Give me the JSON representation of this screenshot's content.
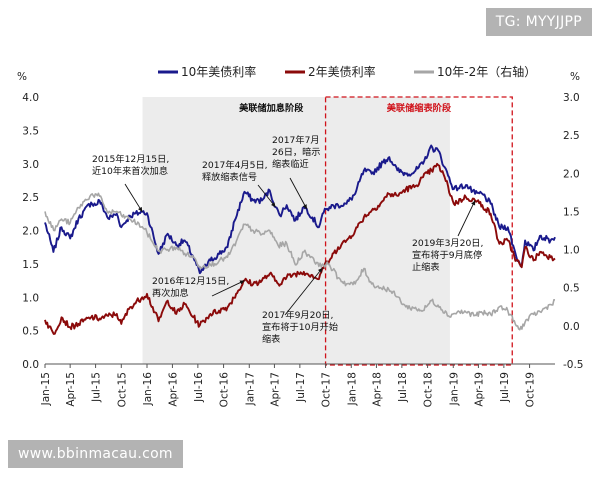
{
  "watermarks": {
    "top": "TG: MYYJJPP",
    "bottom": "www.bbinmacau.com"
  },
  "chart_data": {
    "type": "line",
    "left_unit": "%",
    "right_unit": "%",
    "ylim_left": [
      0.0,
      4.0
    ],
    "yticks_left": [
      "0.0",
      "0.5",
      "1.0",
      "1.5",
      "2.0",
      "2.5",
      "3.0",
      "3.5",
      "4.0"
    ],
    "ylim_right": [
      -0.5,
      3.0
    ],
    "yticks_right": [
      "-0.5",
      "0.0",
      "0.5",
      "1.0",
      "1.5",
      "2.0",
      "2.5",
      "3.0"
    ],
    "xlim": [
      "2015-01-01",
      "2019-12-31"
    ],
    "x_ticks": [
      {
        "label": "Jan-15",
        "date": "2015-01-01"
      },
      {
        "label": "Apr-15",
        "date": "2015-04-01"
      },
      {
        "label": "Jul-15",
        "date": "2015-07-01"
      },
      {
        "label": "Oct-15",
        "date": "2015-10-01"
      },
      {
        "label": "Jan-16",
        "date": "2016-01-01"
      },
      {
        "label": "Apr-16",
        "date": "2016-04-01"
      },
      {
        "label": "Jul-16",
        "date": "2016-07-01"
      },
      {
        "label": "Oct-16",
        "date": "2016-10-01"
      },
      {
        "label": "Jan-17",
        "date": "2017-01-01"
      },
      {
        "label": "Apr-17",
        "date": "2017-04-01"
      },
      {
        "label": "Jul-17",
        "date": "2017-07-01"
      },
      {
        "label": "Oct-17",
        "date": "2017-10-01"
      },
      {
        "label": "Jan-18",
        "date": "2018-01-01"
      },
      {
        "label": "Apr-18",
        "date": "2018-04-01"
      },
      {
        "label": "Jul-18",
        "date": "2018-07-01"
      },
      {
        "label": "Oct-18",
        "date": "2018-10-01"
      },
      {
        "label": "Jan-19",
        "date": "2019-01-01"
      },
      {
        "label": "Apr-19",
        "date": "2019-04-01"
      },
      {
        "label": "Jul-19",
        "date": "2019-07-01"
      },
      {
        "label": "Oct-19",
        "date": "2019-10-01"
      }
    ],
    "legend_position": "top",
    "series": [
      {
        "name": "10年美债利率",
        "axis": "left",
        "color": "#1a1a8c",
        "points": [
          [
            "2015-01-01",
            2.12
          ],
          [
            "2015-01-31",
            1.68
          ],
          [
            "2015-03-01",
            2.05
          ],
          [
            "2015-04-01",
            1.88
          ],
          [
            "2015-05-01",
            2.18
          ],
          [
            "2015-06-15",
            2.42
          ],
          [
            "2015-07-01",
            2.38
          ],
          [
            "2015-07-15",
            2.45
          ],
          [
            "2015-08-15",
            2.18
          ],
          [
            "2015-09-15",
            2.25
          ],
          [
            "2015-10-01",
            2.05
          ],
          [
            "2015-11-01",
            2.22
          ],
          [
            "2015-12-15",
            2.28
          ],
          [
            "2016-01-01",
            2.26
          ],
          [
            "2016-02-11",
            1.65
          ],
          [
            "2016-03-15",
            1.95
          ],
          [
            "2016-04-15",
            1.78
          ],
          [
            "2016-05-15",
            1.85
          ],
          [
            "2016-06-15",
            1.6
          ],
          [
            "2016-07-08",
            1.36
          ],
          [
            "2016-08-15",
            1.55
          ],
          [
            "2016-09-15",
            1.65
          ],
          [
            "2016-10-15",
            1.75
          ],
          [
            "2016-11-10",
            2.15
          ],
          [
            "2016-12-15",
            2.58
          ],
          [
            "2017-01-15",
            2.45
          ],
          [
            "2017-02-15",
            2.45
          ],
          [
            "2017-03-15",
            2.6
          ],
          [
            "2017-04-05",
            2.35
          ],
          [
            "2017-04-20",
            2.23
          ],
          [
            "2017-05-15",
            2.38
          ],
          [
            "2017-06-15",
            2.15
          ],
          [
            "2017-07-15",
            2.35
          ],
          [
            "2017-07-26",
            2.32
          ],
          [
            "2017-09-07",
            2.05
          ],
          [
            "2017-09-20",
            2.25
          ],
          [
            "2017-10-15",
            2.35
          ],
          [
            "2017-11-15",
            2.38
          ],
          [
            "2017-12-15",
            2.4
          ],
          [
            "2018-01-15",
            2.55
          ],
          [
            "2018-02-15",
            2.9
          ],
          [
            "2018-03-15",
            2.85
          ],
          [
            "2018-04-25",
            3.02
          ],
          [
            "2018-05-17",
            3.1
          ],
          [
            "2018-06-15",
            2.9
          ],
          [
            "2018-07-15",
            2.85
          ],
          [
            "2018-08-15",
            2.88
          ],
          [
            "2018-09-15",
            3.0
          ],
          [
            "2018-10-10",
            3.24
          ],
          [
            "2018-11-08",
            3.2
          ],
          [
            "2018-12-01",
            2.95
          ],
          [
            "2019-01-03",
            2.62
          ],
          [
            "2019-02-15",
            2.68
          ],
          [
            "2019-03-20",
            2.55
          ],
          [
            "2019-04-15",
            2.55
          ],
          [
            "2019-05-15",
            2.4
          ],
          [
            "2019-06-15",
            2.05
          ],
          [
            "2019-07-15",
            2.05
          ],
          [
            "2019-08-15",
            1.6
          ],
          [
            "2019-09-03",
            1.47
          ],
          [
            "2019-09-15",
            1.85
          ],
          [
            "2019-10-15",
            1.7
          ],
          [
            "2019-11-07",
            1.92
          ],
          [
            "2019-12-15",
            1.85
          ],
          [
            "2019-12-31",
            1.9
          ]
        ]
      },
      {
        "name": "2年美债利率",
        "axis": "left",
        "color": "#8b0a0a",
        "points": [
          [
            "2015-01-01",
            0.66
          ],
          [
            "2015-02-01",
            0.45
          ],
          [
            "2015-03-01",
            0.7
          ],
          [
            "2015-04-01",
            0.55
          ],
          [
            "2015-05-01",
            0.6
          ],
          [
            "2015-06-15",
            0.7
          ],
          [
            "2015-07-15",
            0.68
          ],
          [
            "2015-08-15",
            0.72
          ],
          [
            "2015-09-15",
            0.75
          ],
          [
            "2015-10-01",
            0.6
          ],
          [
            "2015-11-01",
            0.85
          ],
          [
            "2015-12-15",
            1.0
          ],
          [
            "2016-01-01",
            1.05
          ],
          [
            "2016-02-11",
            0.64
          ],
          [
            "2016-03-15",
            0.95
          ],
          [
            "2016-04-15",
            0.75
          ],
          [
            "2016-05-15",
            0.9
          ],
          [
            "2016-06-15",
            0.7
          ],
          [
            "2016-07-08",
            0.58
          ],
          [
            "2016-08-15",
            0.75
          ],
          [
            "2016-09-15",
            0.8
          ],
          [
            "2016-10-15",
            0.85
          ],
          [
            "2016-11-15",
            1.05
          ],
          [
            "2016-12-15",
            1.25
          ],
          [
            "2017-01-15",
            1.2
          ],
          [
            "2017-02-15",
            1.25
          ],
          [
            "2017-03-15",
            1.35
          ],
          [
            "2017-04-15",
            1.2
          ],
          [
            "2017-05-15",
            1.3
          ],
          [
            "2017-06-15",
            1.35
          ],
          [
            "2017-07-15",
            1.38
          ],
          [
            "2017-08-15",
            1.33
          ],
          [
            "2017-09-07",
            1.27
          ],
          [
            "2017-09-20",
            1.44
          ],
          [
            "2017-10-15",
            1.55
          ],
          [
            "2017-11-15",
            1.75
          ],
          [
            "2017-12-15",
            1.85
          ],
          [
            "2018-01-15",
            2.0
          ],
          [
            "2018-02-15",
            2.2
          ],
          [
            "2018-03-15",
            2.3
          ],
          [
            "2018-04-15",
            2.4
          ],
          [
            "2018-05-15",
            2.55
          ],
          [
            "2018-06-15",
            2.52
          ],
          [
            "2018-07-15",
            2.62
          ],
          [
            "2018-08-15",
            2.65
          ],
          [
            "2018-09-15",
            2.8
          ],
          [
            "2018-10-15",
            2.9
          ],
          [
            "2018-11-08",
            2.98
          ],
          [
            "2018-12-01",
            2.8
          ],
          [
            "2019-01-03",
            2.4
          ],
          [
            "2019-02-15",
            2.5
          ],
          [
            "2019-03-20",
            2.45
          ],
          [
            "2019-04-15",
            2.38
          ],
          [
            "2019-05-15",
            2.25
          ],
          [
            "2019-06-15",
            1.8
          ],
          [
            "2019-07-15",
            1.85
          ],
          [
            "2019-08-15",
            1.55
          ],
          [
            "2019-09-03",
            1.45
          ],
          [
            "2019-09-15",
            1.75
          ],
          [
            "2019-10-15",
            1.55
          ],
          [
            "2019-11-07",
            1.68
          ],
          [
            "2019-12-15",
            1.6
          ],
          [
            "2019-12-31",
            1.58
          ]
        ]
      },
      {
        "name": "10年-2年（右轴）",
        "axis": "right",
        "color": "#a6a6a6",
        "points": [
          [
            "2015-01-01",
            1.5
          ],
          [
            "2015-02-01",
            1.25
          ],
          [
            "2015-03-01",
            1.4
          ],
          [
            "2015-04-01",
            1.35
          ],
          [
            "2015-05-01",
            1.55
          ],
          [
            "2015-06-15",
            1.72
          ],
          [
            "2015-07-15",
            1.7
          ],
          [
            "2015-08-15",
            1.48
          ],
          [
            "2015-09-15",
            1.5
          ],
          [
            "2015-10-01",
            1.45
          ],
          [
            "2015-11-01",
            1.4
          ],
          [
            "2015-12-15",
            1.3
          ],
          [
            "2016-01-01",
            1.22
          ],
          [
            "2016-02-11",
            0.98
          ],
          [
            "2016-03-15",
            1.0
          ],
          [
            "2016-04-15",
            1.03
          ],
          [
            "2016-05-15",
            0.95
          ],
          [
            "2016-06-15",
            0.9
          ],
          [
            "2016-07-08",
            0.78
          ],
          [
            "2016-08-15",
            0.8
          ],
          [
            "2016-09-15",
            0.85
          ],
          [
            "2016-10-15",
            0.9
          ],
          [
            "2016-11-15",
            1.1
          ],
          [
            "2016-12-15",
            1.33
          ],
          [
            "2017-01-15",
            1.25
          ],
          [
            "2017-02-15",
            1.2
          ],
          [
            "2017-03-15",
            1.25
          ],
          [
            "2017-04-15",
            1.05
          ],
          [
            "2017-05-15",
            1.08
          ],
          [
            "2017-06-15",
            0.8
          ],
          [
            "2017-07-15",
            0.97
          ],
          [
            "2017-08-15",
            0.9
          ],
          [
            "2017-09-07",
            0.78
          ],
          [
            "2017-09-20",
            0.81
          ],
          [
            "2017-10-15",
            0.8
          ],
          [
            "2017-11-15",
            0.63
          ],
          [
            "2017-12-15",
            0.55
          ],
          [
            "2018-01-15",
            0.55
          ],
          [
            "2018-02-15",
            0.75
          ],
          [
            "2018-03-15",
            0.55
          ],
          [
            "2018-04-15",
            0.5
          ],
          [
            "2018-05-15",
            0.48
          ],
          [
            "2018-06-15",
            0.38
          ],
          [
            "2018-07-15",
            0.25
          ],
          [
            "2018-08-15",
            0.23
          ],
          [
            "2018-09-15",
            0.2
          ],
          [
            "2018-10-15",
            0.33
          ],
          [
            "2018-11-15",
            0.25
          ],
          [
            "2018-12-15",
            0.13
          ],
          [
            "2019-01-15",
            0.18
          ],
          [
            "2019-02-15",
            0.18
          ],
          [
            "2019-03-20",
            0.14
          ],
          [
            "2019-04-15",
            0.17
          ],
          [
            "2019-05-15",
            0.15
          ],
          [
            "2019-06-15",
            0.25
          ],
          [
            "2019-07-15",
            0.2
          ],
          [
            "2019-08-15",
            0.0
          ],
          [
            "2019-08-27",
            -0.05
          ],
          [
            "2019-09-15",
            0.05
          ],
          [
            "2019-10-15",
            0.15
          ],
          [
            "2019-11-15",
            0.2
          ],
          [
            "2019-12-15",
            0.28
          ],
          [
            "2019-12-31",
            0.34
          ]
        ]
      }
    ],
    "regions": [
      {
        "label": "美联储加息阶段",
        "start": "2015-12-16",
        "end": "2018-12-20",
        "style": "shaded"
      },
      {
        "label": "美联储缩表阶段",
        "start": "2017-10-01",
        "end": "2019-07-31",
        "style": "red-dashed"
      }
    ],
    "annotations": [
      {
        "id": "a1",
        "lines": [
          "2015年12月15日,",
          "近10年来首次加息"
        ],
        "date": "2015-12-15",
        "value": 2.28,
        "axis": "left"
      },
      {
        "id": "a2",
        "lines": [
          "2017年4月5日,",
          "释放缩表信号"
        ],
        "date": "2017-04-05",
        "value": 2.35,
        "axis": "left"
      },
      {
        "id": "a3",
        "lines": [
          "2017年7月",
          "26日，暗示",
          "缩表临近"
        ],
        "date": "2017-07-26",
        "value": 2.32,
        "axis": "left"
      },
      {
        "id": "a4",
        "lines": [
          "2016年12月15日,",
          "再次加息"
        ],
        "date": "2016-12-15",
        "value": 1.25,
        "axis": "left"
      },
      {
        "id": "a5",
        "lines": [
          "2017年9月20日,",
          "宣布将于10月开始",
          "缩表"
        ],
        "date": "2017-09-20",
        "value": 1.44,
        "axis": "left"
      },
      {
        "id": "a6",
        "lines": [
          "2019年3月20日,",
          "宣布将于9月底停",
          "止缩表"
        ],
        "date": "2019-03-20",
        "value": 2.45,
        "axis": "left"
      }
    ]
  }
}
